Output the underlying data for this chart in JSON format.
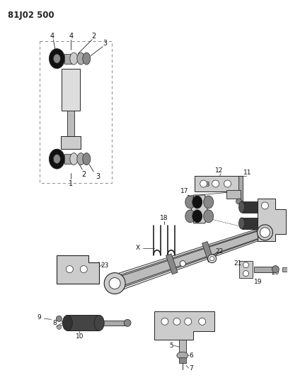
{
  "title": "81J02 500",
  "bg_color": "#ffffff",
  "line_color": "#222222",
  "fig_width": 4.07,
  "fig_height": 5.33,
  "dpi": 100
}
